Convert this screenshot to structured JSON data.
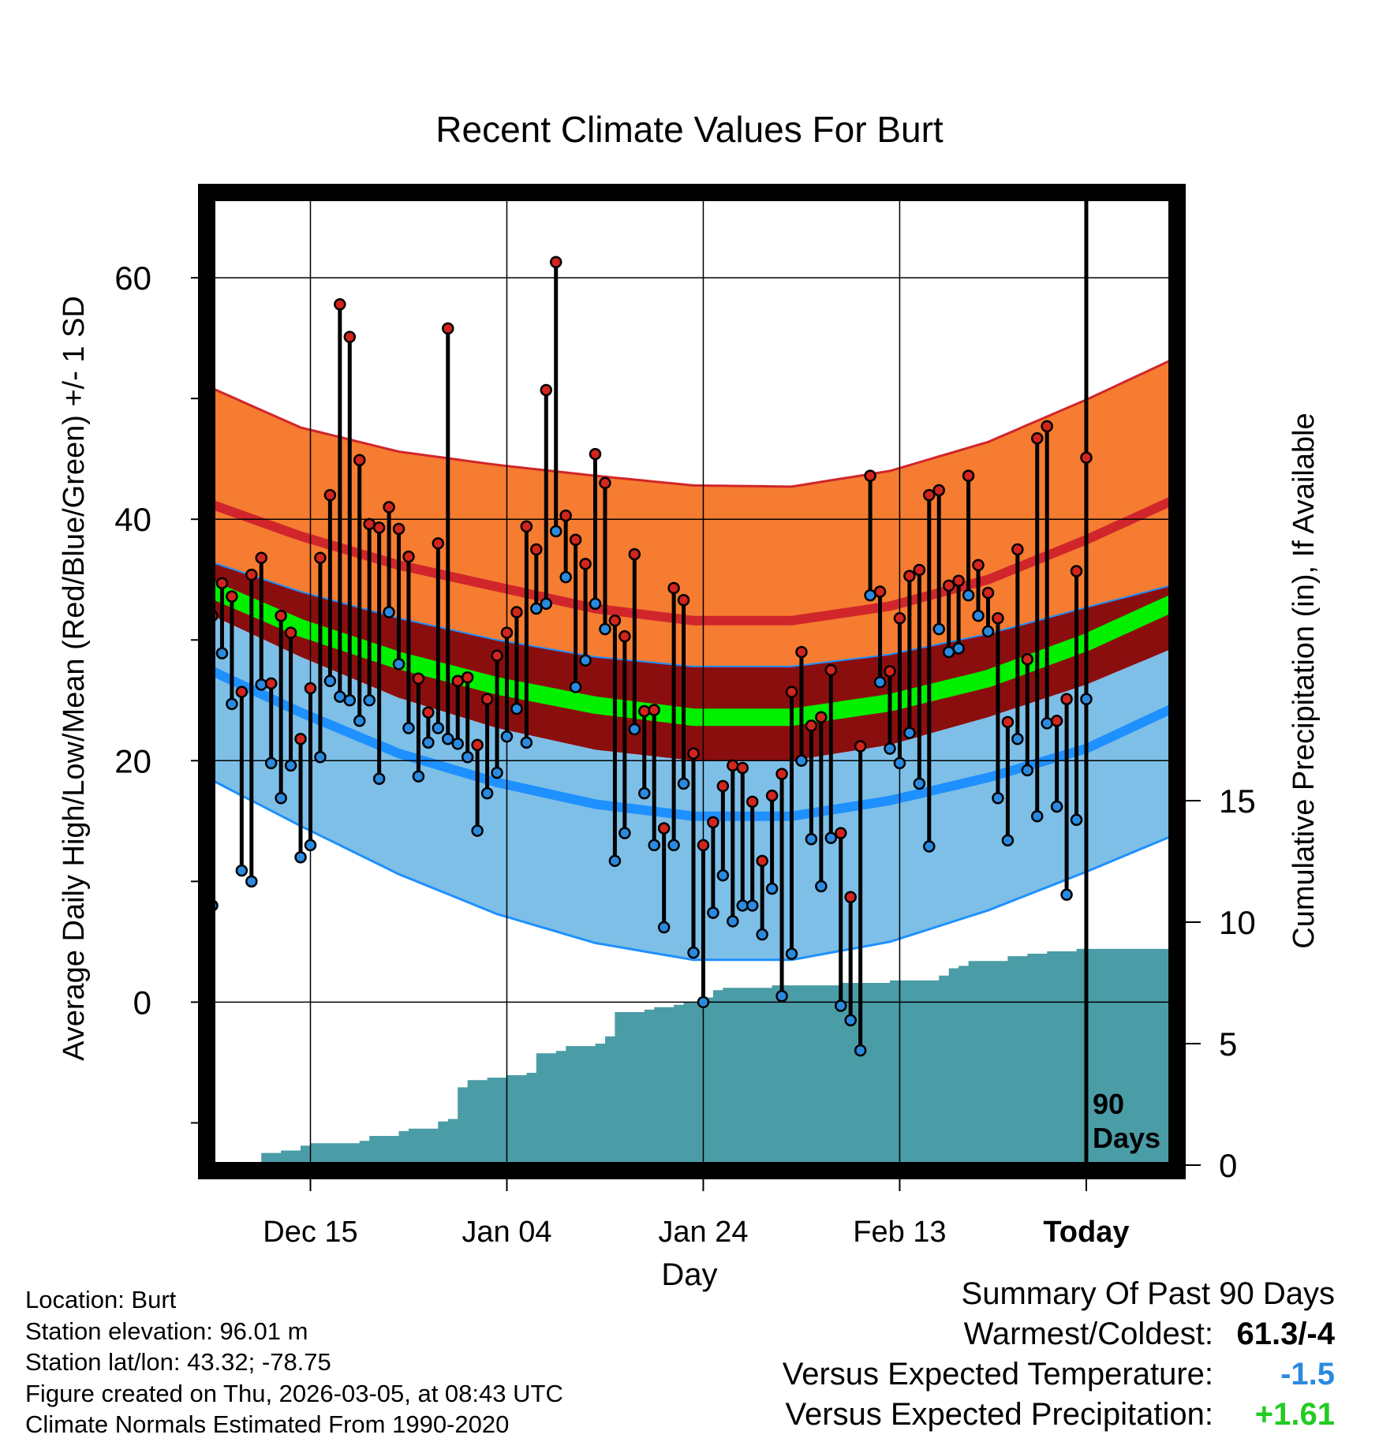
{
  "title": "Recent Climate Values For Burt",
  "chart_data": {
    "type": "line",
    "title": "Recent Climate Values For Burt",
    "xlabel": "Day",
    "ylabel": "Average Daily High/Low/Mean (Red/Blue/Green) +/- 1 SD",
    "y2label": "Cumulative Precipitation (in), If Available",
    "x_range_days": [
      -89,
      9
    ],
    "ylim": [
      -13.5,
      67
    ],
    "y_ticks": [
      0,
      20,
      40,
      60
    ],
    "y_tick_labels": [
      "0",
      "20",
      "40",
      "60"
    ],
    "y2lim": [
      0,
      40
    ],
    "y2_ticks": [
      0,
      5,
      10,
      15
    ],
    "y2_tick_labels": [
      "0",
      "5",
      "10",
      "15"
    ],
    "x_ticks": [
      -79,
      -59,
      -39,
      -19,
      0
    ],
    "x_tick_labels": [
      "Dec 15",
      "Jan 04",
      "Jan 24",
      "Feb 13",
      "Today"
    ],
    "today_marker": {
      "label_line1": "90",
      "label_line2": "Days"
    },
    "normals_x": [
      -90,
      -80,
      -70,
      -60,
      -50,
      -40,
      -30,
      -20,
      -10,
      0,
      10
    ],
    "normal_high": [
      41.5,
      38.6,
      36.2,
      34.4,
      32.6,
      31.6,
      31.6,
      32.8,
      35.0,
      38.3,
      42.0
    ],
    "normal_high_plus_sd": [
      51.2,
      47.6,
      45.6,
      44.5,
      43.6,
      42.8,
      42.7,
      44.0,
      46.4,
      49.9,
      53.7
    ],
    "normal_mean": [
      34.5,
      31.0,
      28.3,
      26.2,
      24.6,
      23.6,
      23.6,
      24.8,
      26.8,
      29.8,
      33.5
    ],
    "normal_mean_plus_sd": [
      36.7,
      34.0,
      31.8,
      30.0,
      28.6,
      27.8,
      27.8,
      28.8,
      30.5,
      32.7,
      34.8
    ],
    "normal_mean_minus_sd": [
      32.4,
      28.6,
      25.2,
      22.7,
      20.9,
      20.0,
      20.0,
      21.3,
      23.6,
      26.3,
      29.7
    ],
    "normal_low": [
      27.8,
      24.0,
      20.6,
      18.2,
      16.4,
      15.4,
      15.4,
      16.7,
      18.6,
      21.0,
      24.8
    ],
    "normal_low_minus_sd": [
      18.8,
      14.6,
      10.6,
      7.3,
      4.9,
      3.5,
      3.5,
      5.0,
      7.6,
      10.8,
      14.2
    ],
    "daily_high": [
      32,
      34.7,
      33.6,
      25.7,
      35.4,
      36.8,
      26.4,
      32,
      30.6,
      21.8,
      26,
      36.8,
      42,
      57.8,
      55.1,
      44.9,
      39.6,
      39.3,
      41,
      39.2,
      36.9,
      26.8,
      24,
      38,
      55.8,
      26.6,
      26.9,
      21.3,
      25.1,
      28.7,
      30.6,
      32.3,
      39.4,
      37.5,
      50.7,
      61.3,
      40.3,
      38.3,
      36.3,
      45.4,
      43,
      31.6,
      30.3,
      37.1,
      24.1,
      24.2,
      14.4,
      34.3,
      33.3,
      20.6,
      13,
      14.9,
      17.9,
      19.6,
      19.4,
      16.6,
      11.7,
      17.1,
      18.9,
      25.7,
      29,
      22.9,
      23.6,
      27.5,
      14,
      8.7,
      21.2,
      43.6,
      34,
      27.4,
      31.8,
      35.3,
      35.8,
      42,
      42.4,
      34.5,
      34.9,
      43.6,
      36.2,
      33.9,
      31.8,
      23.2,
      37.5,
      28.4,
      46.7,
      47.7,
      23.3,
      25.1,
      35.7,
      45.1
    ],
    "daily_low": [
      8,
      28.9,
      24.7,
      10.9,
      10,
      26.3,
      19.8,
      16.9,
      19.6,
      12,
      13,
      20.3,
      26.6,
      25.3,
      25,
      23.3,
      25,
      18.5,
      32.3,
      28,
      22.7,
      18.7,
      21.5,
      22.7,
      21.8,
      21.4,
      20.3,
      14.2,
      17.3,
      19,
      22,
      24.3,
      21.5,
      32.6,
      33,
      39,
      35.2,
      26.1,
      28.3,
      33,
      30.9,
      11.7,
      14,
      22.6,
      17.3,
      13,
      6.2,
      13,
      18.1,
      4.1,
      0,
      7.4,
      10.5,
      6.7,
      8,
      8,
      5.6,
      9.4,
      0.5,
      4,
      20,
      13.5,
      9.6,
      13.6,
      -0.3,
      -1.5,
      -4,
      33.7,
      26.5,
      21,
      19.8,
      22.3,
      18.1,
      12.9,
      30.9,
      29,
      29.3,
      33.7,
      32,
      30.7,
      16.9,
      13.4,
      21.8,
      19.2,
      15.4,
      23.1,
      16.2,
      8.9,
      15.1,
      25.1
    ],
    "cumulative_precip": [
      0,
      0,
      0,
      0,
      0,
      0.5,
      0.5,
      0.6,
      0.6,
      0.8,
      0.9,
      0.9,
      0.9,
      0.9,
      0.9,
      1.0,
      1.2,
      1.2,
      1.2,
      1.4,
      1.5,
      1.5,
      1.5,
      1.8,
      1.9,
      3.2,
      3.5,
      3.5,
      3.6,
      3.6,
      3.7,
      3.7,
      3.8,
      4.6,
      4.6,
      4.7,
      4.9,
      4.9,
      4.9,
      5.0,
      5.3,
      6.3,
      6.3,
      6.3,
      6.4,
      6.5,
      6.5,
      6.6,
      6.7,
      6.7,
      6.9,
      7.2,
      7.3,
      7.3,
      7.3,
      7.3,
      7.3,
      7.4,
      7.4,
      7.4,
      7.4,
      7.4,
      7.4,
      7.4,
      7.5,
      7.5,
      7.5,
      7.5,
      7.5,
      7.6,
      7.6,
      7.6,
      7.6,
      7.6,
      7.8,
      8.1,
      8.2,
      8.4,
      8.4,
      8.4,
      8.4,
      8.6,
      8.6,
      8.7,
      8.7,
      8.8,
      8.8,
      8.8,
      8.9,
      8.9,
      8.9,
      8.9,
      8.9,
      8.9,
      8.9,
      8.9,
      8.9,
      8.9,
      8.9,
      8.9,
      8.9
    ]
  },
  "footer": {
    "location": "Location: Burt",
    "elevation": "Station elevation: 96.01 m",
    "latlon": "Station lat/lon: 43.32; -78.75",
    "created": "Figure created on Thu, 2026-03-05, at 08:43 UTC",
    "normals": "Climate Normals Estimated From 1990-2020"
  },
  "summary": {
    "heading": "Summary Of Past 90 Days",
    "warmest_label": "Warmest/Coldest:",
    "warmest_value": "61.3/-4",
    "temp_label": "Versus Expected Temperature:",
    "temp_value": "-1.5",
    "precip_label": "Versus Expected Precipitation:",
    "precip_value": "+1.61"
  },
  "colors": {
    "high_band": "#f57c30",
    "high_line": "#d0262b",
    "mean_band": "#8b0e0e",
    "mean_line": "#00f000",
    "low_band": "#7ebfe7",
    "low_line": "#1e90ff",
    "precip": "#4a9ca6",
    "high_dot": "#d2251e",
    "low_dot": "#2a8ae0",
    "temp_value": "#2a8ae0",
    "precip_value": "#22cc22"
  }
}
